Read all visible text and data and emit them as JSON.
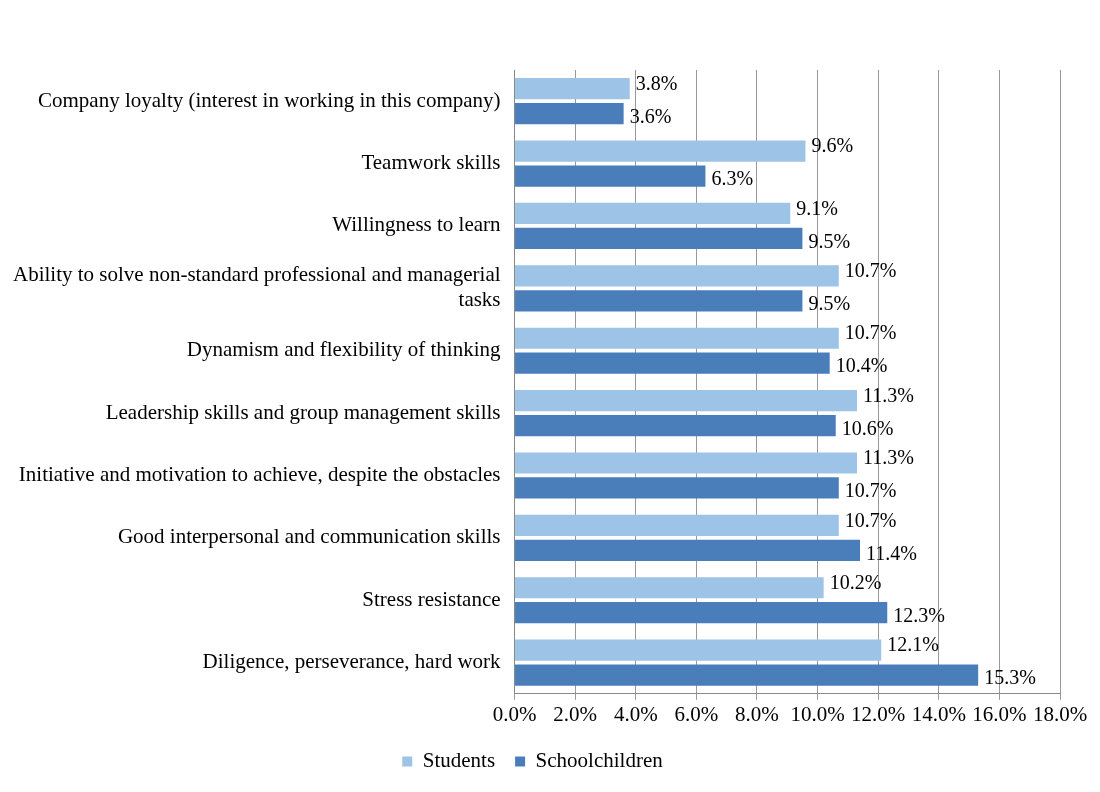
{
  "chart_data": {
    "type": "bar",
    "orientation": "horizontal",
    "categories": [
      "Company loyalty (interest in working in this company)",
      "Teamwork skills",
      "Willingness to learn",
      "Ability to solve non-standard professional and managerial tasks",
      "Dynamism and flexibility of thinking",
      "Leadership skills and group management skills",
      "Initiative and motivation to achieve, despite the obstacles",
      "Good interpersonal and communication skills",
      "Stress resistance",
      "Diligence, perseverance, hard work"
    ],
    "series": [
      {
        "name": "Students",
        "color": "#9dc3e6",
        "values": [
          3.8,
          9.6,
          9.1,
          10.7,
          10.7,
          11.3,
          11.3,
          10.7,
          10.2,
          12.1
        ],
        "value_labels": [
          "3.8%",
          "9.6%",
          "9.1%",
          "10.7%",
          "10.7%",
          "11.3%",
          "11.3%",
          "10.7%",
          "10.2%",
          "12.1%"
        ]
      },
      {
        "name": "Schoolchildren",
        "color": "#4a7ebb",
        "values": [
          3.6,
          6.3,
          9.5,
          9.5,
          10.4,
          10.6,
          10.7,
          11.4,
          12.3,
          15.3
        ],
        "value_labels": [
          "3.6%",
          "6.3%",
          "9.5%",
          "9.5%",
          "10.4%",
          "10.6%",
          "10.7%",
          "11.4%",
          "12.3%",
          "15.3%"
        ]
      }
    ],
    "xlim": [
      0,
      18
    ],
    "xticks": [
      {
        "value": 0,
        "label": "0.0%"
      },
      {
        "value": 2,
        "label": "2.0%"
      },
      {
        "value": 4,
        "label": "4.0%"
      },
      {
        "value": 6,
        "label": "6.0%"
      },
      {
        "value": 8,
        "label": "8.0%"
      },
      {
        "value": 10,
        "label": "10.0%"
      },
      {
        "value": 12,
        "label": "12.0%"
      },
      {
        "value": 14,
        "label": "14.0%"
      },
      {
        "value": 16,
        "label": "16.0%"
      },
      {
        "value": 18,
        "label": "18.0%"
      }
    ],
    "grid": "x",
    "legend": "bottom"
  }
}
